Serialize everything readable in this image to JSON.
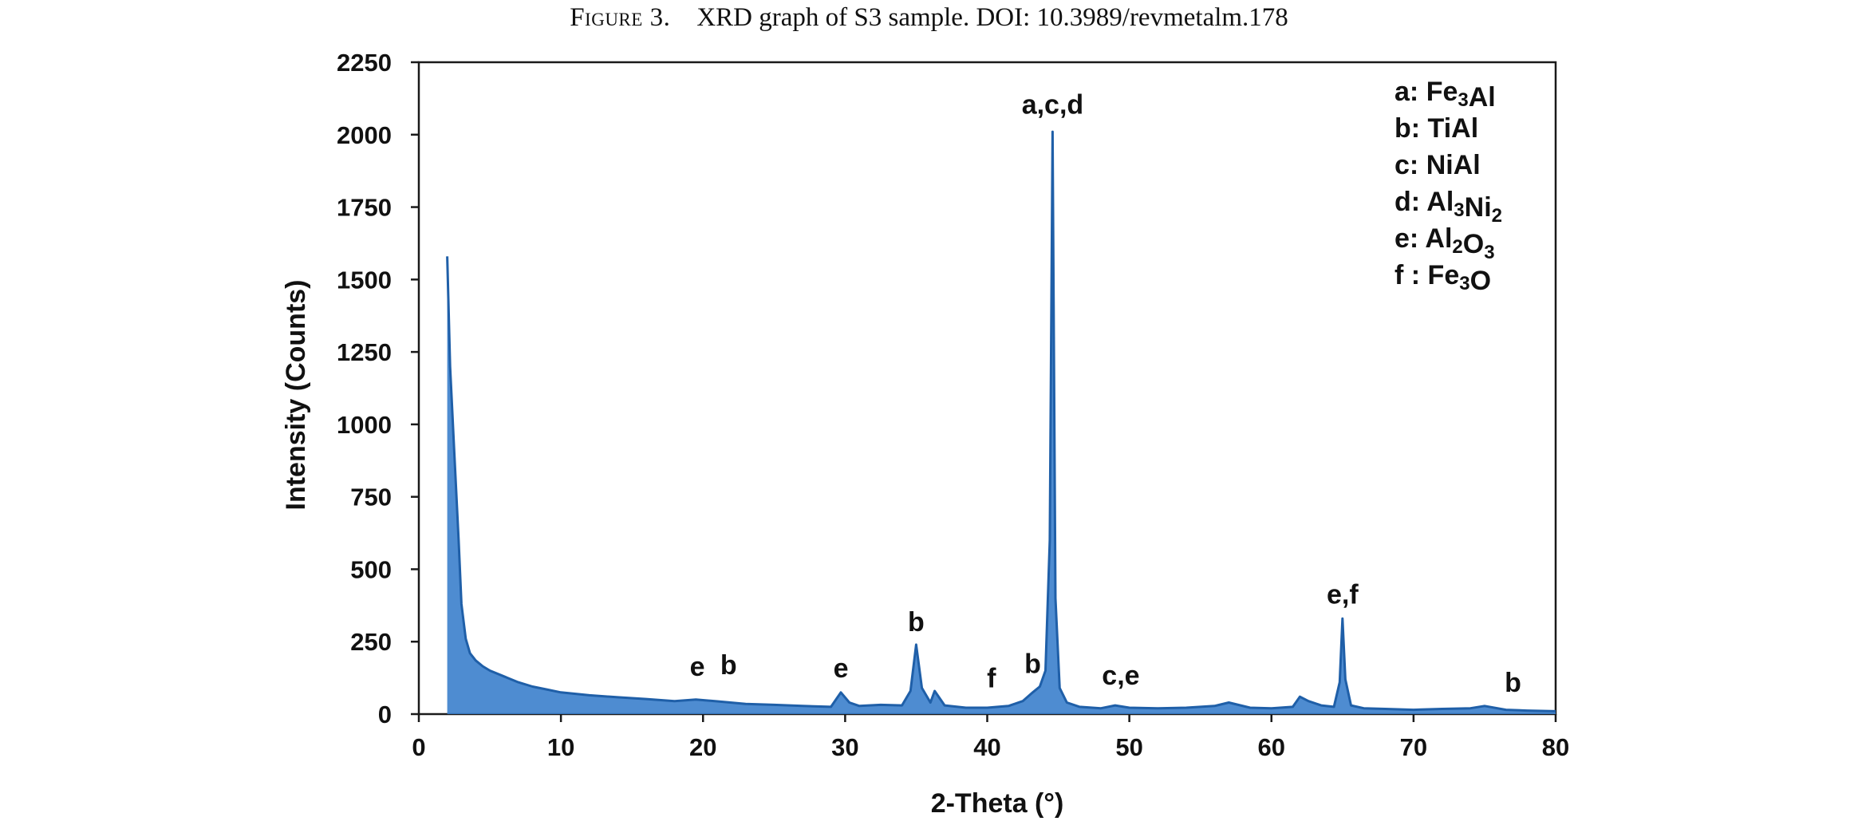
{
  "caption": {
    "figure_number": "Figure 3.",
    "text": "XRD graph of S3 sample. DOI: 10.3989/revmetalm.178"
  },
  "chart_data": {
    "type": "line",
    "title": "",
    "xlabel": "2-Theta (°)",
    "ylabel": "Intensity (Counts)",
    "xlim": [
      0,
      80
    ],
    "ylim": [
      0,
      2250
    ],
    "x_ticks": [
      0,
      10,
      20,
      30,
      40,
      50,
      60,
      70,
      80
    ],
    "y_ticks": [
      0,
      250,
      500,
      750,
      1000,
      1250,
      1500,
      1750,
      2000,
      2250
    ],
    "grid": false,
    "series_color": "#1f5fa8",
    "fill_color": "#3b7fcc",
    "legend_position": "top-right",
    "series": [
      {
        "x": [
          2.0,
          2.2,
          2.5,
          2.8,
          3.0,
          3.3,
          3.6,
          4.0,
          4.5,
          5.0,
          6.0,
          7.0,
          8.0,
          9.0,
          10.0,
          12.0,
          14.0,
          16.0,
          18.0,
          19.5,
          21.0,
          23.0,
          25.0,
          27.0,
          29.0,
          29.7,
          30.3,
          31.0,
          32.5,
          34.0,
          34.6,
          35.0,
          35.4,
          36.0,
          36.3,
          37.0,
          38.5,
          40.0,
          41.5,
          42.5,
          43.2,
          43.7,
          44.1,
          44.4,
          44.6,
          44.8,
          45.1,
          45.6,
          46.5,
          48.0,
          49.0,
          50.0,
          52.0,
          54.0,
          56.0,
          57.0,
          58.5,
          60.0,
          61.5,
          62.0,
          62.6,
          63.5,
          64.4,
          64.8,
          65.0,
          65.2,
          65.6,
          66.5,
          68.0,
          70.0,
          72.0,
          74.0,
          75.0,
          76.5,
          78.0,
          80.0
        ],
        "y": [
          1580,
          1200,
          900,
          600,
          380,
          260,
          210,
          185,
          165,
          150,
          130,
          110,
          95,
          85,
          75,
          65,
          58,
          52,
          45,
          50,
          44,
          35,
          32,
          28,
          25,
          75,
          40,
          28,
          32,
          30,
          80,
          240,
          90,
          40,
          80,
          30,
          22,
          22,
          28,
          45,
          75,
          95,
          150,
          600,
          2010,
          400,
          90,
          40,
          25,
          20,
          30,
          22,
          20,
          22,
          28,
          40,
          22,
          20,
          25,
          60,
          45,
          30,
          25,
          110,
          330,
          120,
          30,
          20,
          18,
          15,
          18,
          20,
          28,
          15,
          12,
          10
        ]
      }
    ],
    "legend": [
      {
        "letter": "a:",
        "phase": "Fe",
        "sub1": "3",
        "rest": "Al",
        "sub2": "",
        "tail": ""
      },
      {
        "letter": "b:",
        "phase": "TiAl",
        "sub1": "",
        "rest": "",
        "sub2": "",
        "tail": ""
      },
      {
        "letter": "c:",
        "phase": "NiAl",
        "sub1": "",
        "rest": "",
        "sub2": "",
        "tail": ""
      },
      {
        "letter": "d:",
        "phase": "Al",
        "sub1": "3",
        "rest": "Ni",
        "sub2": "2",
        "tail": ""
      },
      {
        "letter": "e:",
        "phase": "Al",
        "sub1": "2",
        "rest": "O",
        "sub2": "3",
        "tail": ""
      },
      {
        "letter": "f :",
        "phase": "Fe",
        "sub1": "3",
        "rest": "O",
        "sub2": "",
        "tail": ""
      }
    ],
    "peak_labels": [
      {
        "text": "a,c,d",
        "x": 44.6,
        "y": 2050
      },
      {
        "text": "e,f",
        "x": 65.0,
        "y": 360
      },
      {
        "text": "b",
        "x": 35.0,
        "y": 265
      },
      {
        "text": "e",
        "x": 29.7,
        "y": 105
      },
      {
        "text": "e",
        "x": 19.6,
        "y": 110
      },
      {
        "text": "b",
        "x": 21.8,
        "y": 115
      },
      {
        "text": "f",
        "x": 40.3,
        "y": 70
      },
      {
        "text": "b",
        "x": 43.2,
        "y": 120
      },
      {
        "text": "c,e",
        "x": 49.4,
        "y": 80
      },
      {
        "text": "b",
        "x": 77.0,
        "y": 55
      }
    ]
  }
}
